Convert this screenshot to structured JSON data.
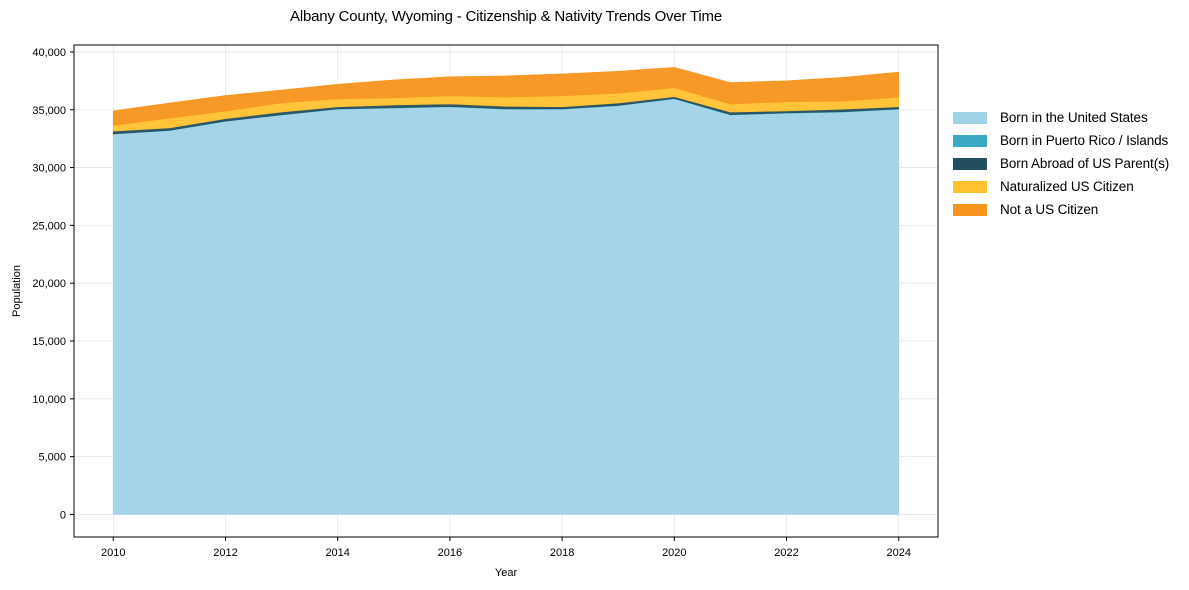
{
  "chart_data": {
    "type": "area",
    "stacked": true,
    "title": "Albany County, Wyoming - Citizenship & Nativity Trends Over Time",
    "xlabel": "Year",
    "ylabel": "Population",
    "x": [
      2010,
      2011,
      2012,
      2013,
      2014,
      2015,
      2016,
      2017,
      2018,
      2019,
      2020,
      2021,
      2022,
      2023,
      2024
    ],
    "xticks": [
      2010,
      2012,
      2014,
      2016,
      2018,
      2020,
      2022,
      2024
    ],
    "xtick_labels": [
      "2010",
      "2012",
      "2014",
      "2016",
      "2018",
      "2020",
      "2022",
      "2024"
    ],
    "yticks": [
      0,
      5000,
      10000,
      15000,
      20000,
      25000,
      30000,
      35000,
      40000
    ],
    "ytick_labels": [
      "0",
      "5,000",
      "10,000",
      "15,000",
      "20,000",
      "25,000",
      "30,000",
      "35,000",
      "40,000"
    ],
    "xlim": [
      2009.3,
      2024.7
    ],
    "ylim": [
      -1950,
      40600
    ],
    "grid": true,
    "legend_position": "right",
    "series": [
      {
        "name": "Born in the United States",
        "color": "#A0D2E8",
        "values": [
          32900,
          33200,
          34000,
          34550,
          35050,
          35150,
          35250,
          35050,
          35050,
          35350,
          35950,
          34550,
          34700,
          34800,
          35050
        ]
      },
      {
        "name": "Born in Puerto Rico / Islands",
        "color": "#3CA8C4",
        "values": [
          20,
          20,
          20,
          25,
          25,
          30,
          30,
          30,
          30,
          30,
          25,
          30,
          30,
          30,
          30
        ]
      },
      {
        "name": "Born Abroad of US Parent(s)",
        "color": "#234E5F",
        "values": [
          230,
          210,
          210,
          225,
          175,
          230,
          220,
          220,
          170,
          200,
          155,
          220,
          170,
          220,
          170
        ]
      },
      {
        "name": "Naturalized US Citizen",
        "color": "#FFC12E",
        "values": [
          500,
          850,
          650,
          800,
          700,
          620,
          700,
          800,
          950,
          850,
          780,
          700,
          800,
          700,
          850
        ]
      },
      {
        "name": "Not a US Citizen",
        "color": "#F7941E",
        "values": [
          1250,
          1300,
          1350,
          1100,
          1250,
          1550,
          1650,
          1830,
          1900,
          1900,
          1750,
          1850,
          1800,
          2050,
          2150
        ]
      }
    ]
  },
  "legend": {
    "items": [
      {
        "label": "Born in the United States",
        "color": "#A0D2E8"
      },
      {
        "label": "Born in Puerto Rico / Islands",
        "color": "#3CA8C4"
      },
      {
        "label": "Born Abroad of US Parent(s)",
        "color": "#234E5F"
      },
      {
        "label": "Naturalized US Citizen",
        "color": "#FFC12E"
      },
      {
        "label": "Not a US Citizen",
        "color": "#F7941E"
      }
    ]
  }
}
